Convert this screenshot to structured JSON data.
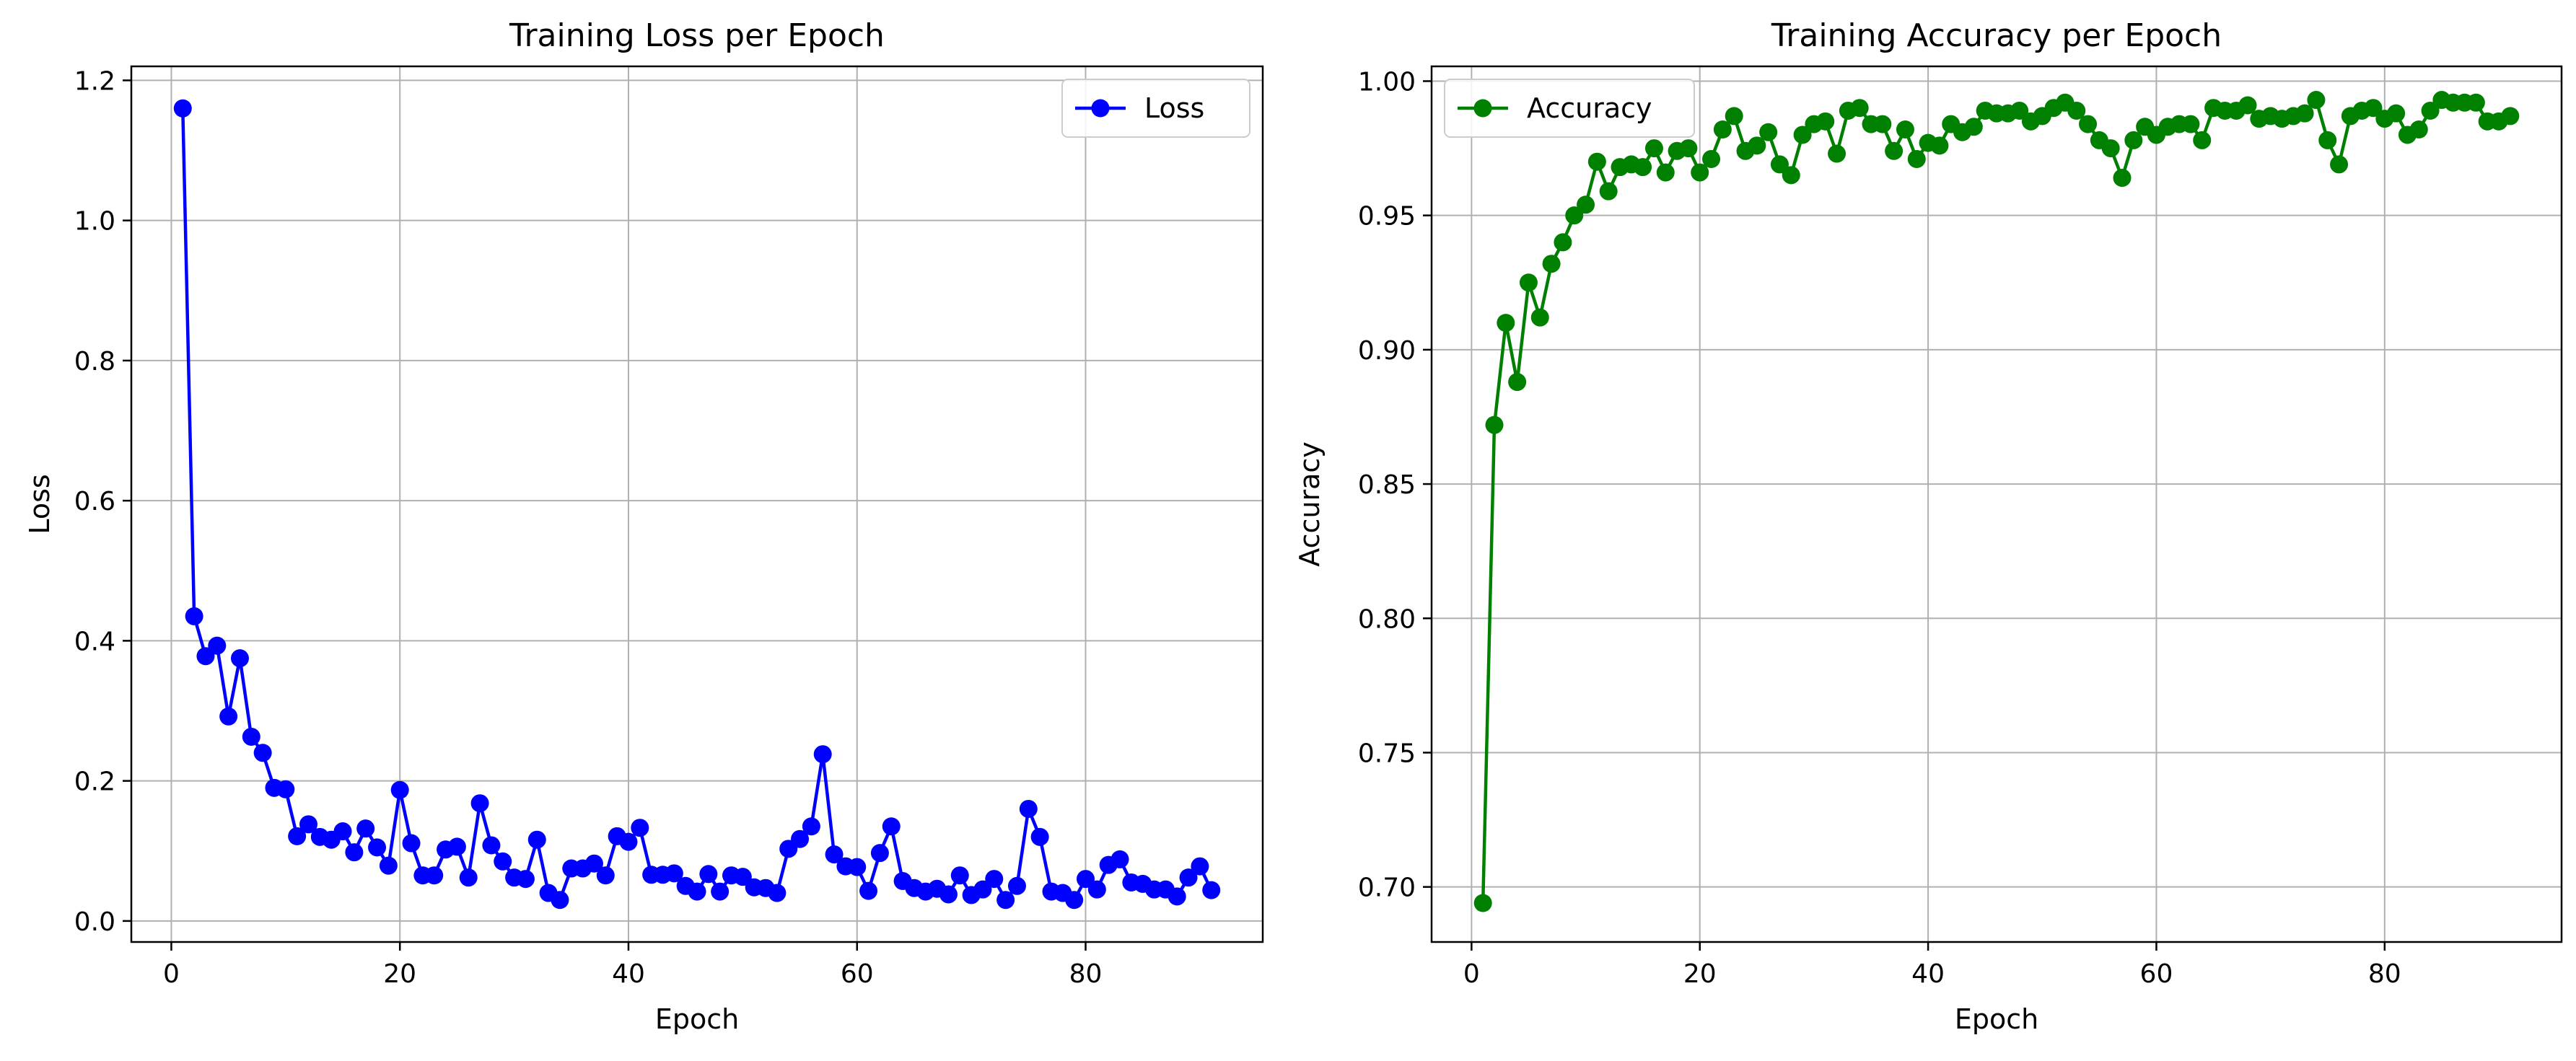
{
  "chart_data": [
    {
      "type": "line",
      "title": "Training Loss per Epoch",
      "xlabel": "Epoch",
      "ylabel": "Loss",
      "xlim": [
        -3.5,
        95.5
      ],
      "ylim": [
        -0.03,
        1.22
      ],
      "xticks": [
        0,
        20,
        40,
        60,
        80
      ],
      "xtick_labels": [
        "0",
        "20",
        "40",
        "60",
        "80"
      ],
      "yticks": [
        0.0,
        0.2,
        0.4,
        0.6,
        0.8,
        1.0,
        1.2
      ],
      "ytick_labels": [
        "0.0",
        "0.2",
        "0.4",
        "0.6",
        "0.8",
        "1.0",
        "1.2"
      ],
      "grid": true,
      "legend_position": "upper right",
      "series": [
        {
          "name": "Loss",
          "color": "#0000ff",
          "marker": "circle",
          "x": [
            1,
            2,
            3,
            4,
            5,
            6,
            7,
            8,
            9,
            10,
            11,
            12,
            13,
            14,
            15,
            16,
            17,
            18,
            19,
            20,
            21,
            22,
            23,
            24,
            25,
            26,
            27,
            28,
            29,
            30,
            31,
            32,
            33,
            34,
            35,
            36,
            37,
            38,
            39,
            40,
            41,
            42,
            43,
            44,
            45,
            46,
            47,
            48,
            49,
            50,
            51,
            52,
            53,
            54,
            55,
            56,
            57,
            58,
            59,
            60,
            61,
            62,
            63,
            64,
            65,
            66,
            67,
            68,
            69,
            70,
            71,
            72,
            73,
            74,
            75,
            76,
            77,
            78,
            79,
            80,
            81,
            82,
            83,
            84,
            85,
            86,
            87,
            88,
            89,
            90,
            91
          ],
          "values": [
            1.16,
            0.435,
            0.378,
            0.393,
            0.292,
            0.375,
            0.263,
            0.24,
            0.19,
            0.188,
            0.121,
            0.138,
            0.12,
            0.116,
            0.128,
            0.098,
            0.132,
            0.105,
            0.079,
            0.187,
            0.111,
            0.065,
            0.065,
            0.102,
            0.106,
            0.062,
            0.168,
            0.108,
            0.085,
            0.062,
            0.06,
            0.116,
            0.04,
            0.03,
            0.075,
            0.075,
            0.082,
            0.065,
            0.121,
            0.113,
            0.133,
            0.066,
            0.066,
            0.068,
            0.05,
            0.042,
            0.067,
            0.042,
            0.065,
            0.063,
            0.048,
            0.047,
            0.04,
            0.103,
            0.117,
            0.135,
            0.238,
            0.095,
            0.078,
            0.077,
            0.043,
            0.097,
            0.135,
            0.057,
            0.047,
            0.042,
            0.046,
            0.038,
            0.065,
            0.037,
            0.045,
            0.06,
            0.03,
            0.05,
            0.16,
            0.12,
            0.042,
            0.04,
            0.03,
            0.06,
            0.045,
            0.08,
            0.088,
            0.055,
            0.053,
            0.045,
            0.045,
            0.035,
            0.062,
            0.078,
            0.044
          ]
        }
      ]
    },
    {
      "type": "line",
      "title": "Training Accuracy per Epoch",
      "xlabel": "Epoch",
      "ylabel": "Accuracy",
      "xlim": [
        -3.5,
        95.5
      ],
      "ylim": [
        0.6795,
        1.0055
      ],
      "xticks": [
        0,
        20,
        40,
        60,
        80
      ],
      "xtick_labels": [
        "0",
        "20",
        "40",
        "60",
        "80"
      ],
      "yticks": [
        0.7,
        0.75,
        0.8,
        0.85,
        0.9,
        0.95,
        1.0
      ],
      "ytick_labels": [
        "0.70",
        "0.75",
        "0.80",
        "0.85",
        "0.90",
        "0.95",
        "1.00"
      ],
      "grid": true,
      "legend_position": "upper left",
      "series": [
        {
          "name": "Accuracy",
          "color": "#008000",
          "marker": "circle",
          "x": [
            1,
            2,
            3,
            4,
            5,
            6,
            7,
            8,
            9,
            10,
            11,
            12,
            13,
            14,
            15,
            16,
            17,
            18,
            19,
            20,
            21,
            22,
            23,
            24,
            25,
            26,
            27,
            28,
            29,
            30,
            31,
            32,
            33,
            34,
            35,
            36,
            37,
            38,
            39,
            40,
            41,
            42,
            43,
            44,
            45,
            46,
            47,
            48,
            49,
            50,
            51,
            52,
            53,
            54,
            55,
            56,
            57,
            58,
            59,
            60,
            61,
            62,
            63,
            64,
            65,
            66,
            67,
            68,
            69,
            70,
            71,
            72,
            73,
            74,
            75,
            76,
            77,
            78,
            79,
            80,
            81,
            82,
            83,
            84,
            85,
            86,
            87,
            88,
            89,
            90,
            91
          ],
          "values": [
            0.694,
            0.872,
            0.91,
            0.888,
            0.925,
            0.912,
            0.932,
            0.94,
            0.95,
            0.954,
            0.97,
            0.959,
            0.968,
            0.969,
            0.968,
            0.975,
            0.966,
            0.974,
            0.975,
            0.966,
            0.971,
            0.982,
            0.987,
            0.974,
            0.976,
            0.981,
            0.969,
            0.965,
            0.98,
            0.984,
            0.985,
            0.973,
            0.989,
            0.99,
            0.984,
            0.984,
            0.974,
            0.982,
            0.971,
            0.977,
            0.976,
            0.984,
            0.981,
            0.983,
            0.989,
            0.988,
            0.988,
            0.989,
            0.985,
            0.987,
            0.99,
            0.992,
            0.989,
            0.984,
            0.978,
            0.975,
            0.964,
            0.978,
            0.983,
            0.98,
            0.983,
            0.984,
            0.984,
            0.978,
            0.99,
            0.989,
            0.989,
            0.991,
            0.986,
            0.987,
            0.986,
            0.987,
            0.988,
            0.993,
            0.978,
            0.969,
            0.987,
            0.989,
            0.99,
            0.986,
            0.988,
            0.98,
            0.982,
            0.989,
            0.993,
            0.992,
            0.992,
            0.992,
            0.985,
            0.985,
            0.987
          ]
        }
      ]
    }
  ]
}
